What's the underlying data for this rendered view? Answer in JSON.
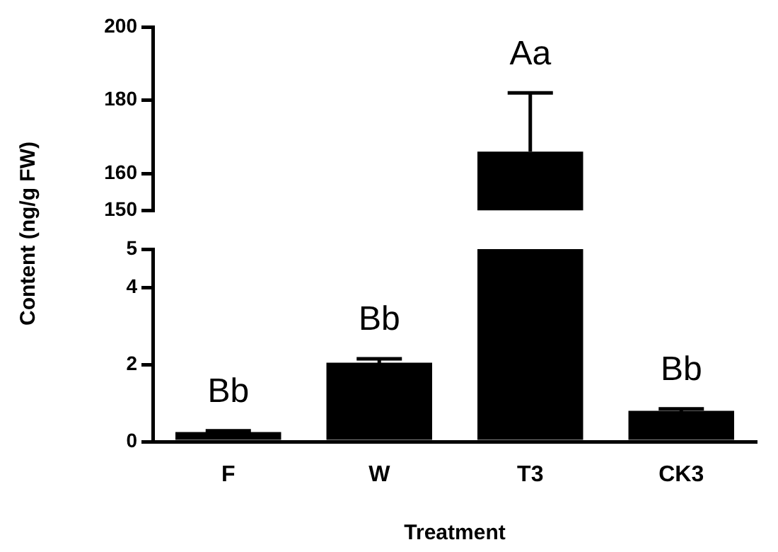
{
  "chart_data": [
    {
      "type": "bar",
      "categories": [
        "F",
        "W",
        "T3",
        "CK3"
      ],
      "values": [
        null,
        null,
        166,
        null
      ],
      "color": "#000000",
      "errors": [
        null,
        null,
        [
          166,
          182
        ],
        null
      ],
      "ylim": [
        150,
        200
      ],
      "yticks": [
        150,
        160,
        180,
        200
      ],
      "tick_labels": "y",
      "grid": false,
      "legend": false,
      "annotations": [
        "Aa"
      ]
    },
    {
      "type": "bar",
      "categories": [
        "F",
        "W",
        "T3",
        "CK3"
      ],
      "values": [
        0.25,
        2.05,
        5,
        0.8
      ],
      "color": "#000000",
      "errors": [
        0.03,
        0.1,
        null,
        0.05
      ],
      "ylim": [
        0,
        5
      ],
      "yticks": [
        0,
        2,
        4,
        5
      ],
      "xlabel": "Treatment",
      "ylabel": "Content (ng/g FW)",
      "grid": false,
      "legend": false,
      "annotations": [
        "Bb",
        "Bb",
        "Bb"
      ]
    }
  ]
}
